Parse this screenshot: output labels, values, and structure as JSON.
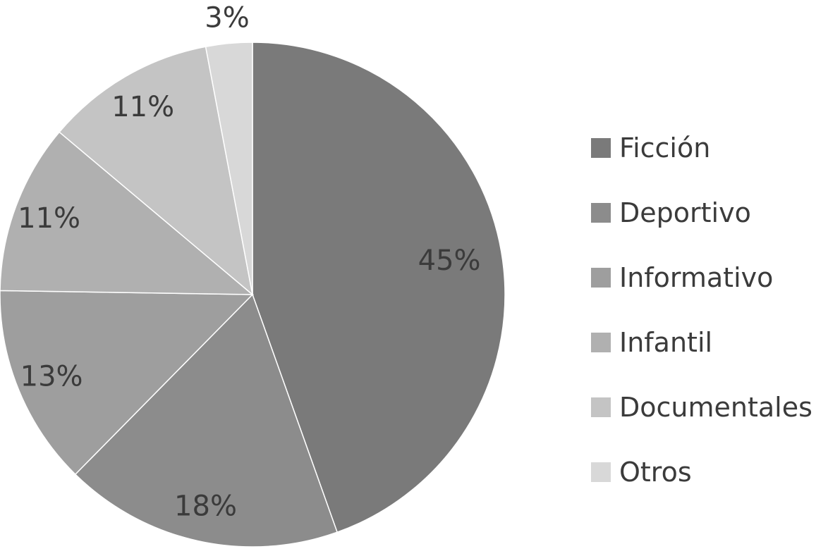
{
  "chart_data": {
    "type": "pie",
    "title": "",
    "legend_position": "right",
    "start_angle_deg": 0,
    "direction": "clockwise",
    "slices": [
      {
        "name": "Ficción",
        "value": 45,
        "label": "45%",
        "color": "#7a7a7a"
      },
      {
        "name": "Deportivo",
        "value": 18,
        "label": "18%",
        "color": "#8c8c8c"
      },
      {
        "name": "Informativo",
        "value": 13,
        "label": "13%",
        "color": "#9e9e9e"
      },
      {
        "name": "Infantil",
        "value": 11,
        "label": "11%",
        "color": "#b0b0b0"
      },
      {
        "name": "Documentales",
        "value": 11,
        "label": "11%",
        "color": "#c4c4c4"
      },
      {
        "name": "Otros",
        "value": 3,
        "label": "3%",
        "color": "#d8d8d8"
      }
    ]
  }
}
